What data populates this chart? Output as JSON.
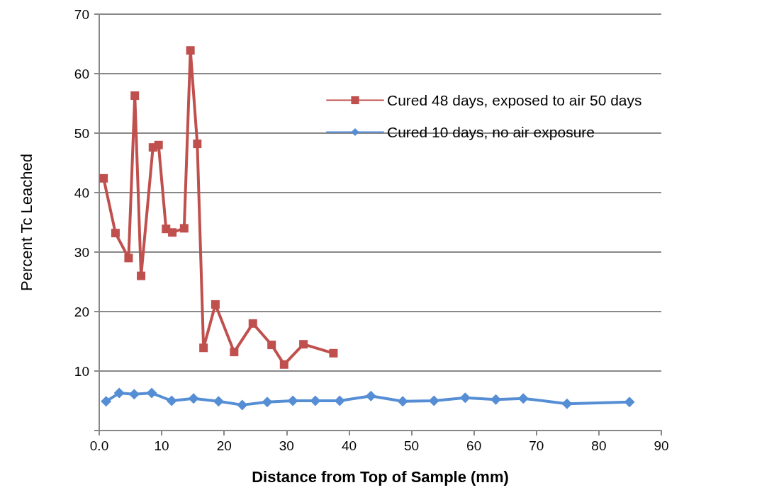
{
  "chart_data": {
    "type": "line",
    "xlabel": "Distance from Top of Sample (mm)",
    "ylabel": "Percent Tc Leached",
    "xlim": [
      0,
      90
    ],
    "xticks": [
      {
        "value": 0,
        "label": "0.0"
      },
      10,
      20,
      30,
      40,
      50,
      60,
      70,
      80,
      90
    ],
    "ylim": [
      0,
      70
    ],
    "yticks": [
      {
        "value": 0,
        "label": null
      },
      10,
      20,
      30,
      40,
      50,
      60,
      70
    ],
    "grid": "y",
    "legend": "top right",
    "line_style": "solid",
    "series": [
      {
        "name": "Cured 48 days, exposed to air 50 days",
        "color": "#c0504d",
        "marker": "square",
        "x": [
          0.7,
          2.6,
          4.7,
          5.7,
          6.7,
          8.6,
          9.5,
          10.7,
          11.7,
          13.6,
          14.6,
          15.7,
          16.7,
          18.6,
          21.6,
          24.6,
          27.6,
          29.6,
          32.7,
          37.5
        ],
        "values": [
          42.4,
          33.2,
          29.0,
          56.3,
          26.0,
          47.6,
          48.0,
          33.9,
          33.3,
          34.0,
          63.9,
          48.2,
          13.9,
          21.2,
          13.2,
          18.0,
          14.4,
          11.1,
          14.5,
          13.0
        ]
      },
      {
        "name": "Cured 10 days, no air exposure",
        "color": "#558ed5",
        "marker": "diamond",
        "x": [
          1.1,
          3.2,
          5.6,
          8.4,
          11.6,
          15.1,
          19.1,
          22.9,
          26.9,
          31.0,
          34.6,
          38.5,
          43.5,
          48.6,
          53.6,
          58.6,
          63.5,
          67.9,
          74.9,
          84.9
        ],
        "values": [
          4.9,
          6.3,
          6.1,
          6.3,
          5.0,
          5.4,
          4.9,
          4.3,
          4.8,
          5.0,
          5.0,
          5.0,
          5.8,
          4.9,
          5.0,
          5.5,
          5.2,
          5.4,
          4.5,
          4.8
        ]
      }
    ]
  }
}
